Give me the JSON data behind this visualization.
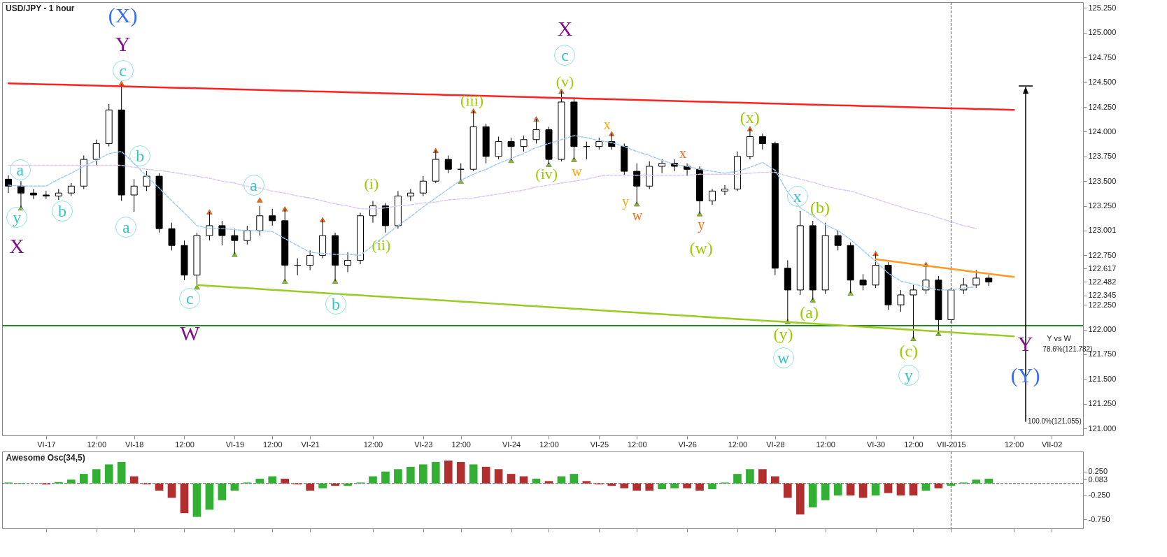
{
  "chart_data": [
    {
      "type": "candlestick",
      "title": "USD/JPY - 1 hour",
      "categories": [
        null,
        null,
        null,
        "VI-17",
        null,
        null,
        null,
        "12:00",
        null,
        null,
        "VI-18",
        null,
        null,
        null,
        "12:00",
        null,
        null,
        null,
        "VI-19",
        null,
        null,
        "12:00",
        null,
        null,
        "VI-21",
        null,
        null,
        null,
        null,
        "12:00",
        null,
        null,
        null,
        "VI-23",
        null,
        null,
        "12:00",
        null,
        null,
        null,
        "VI-24",
        null,
        null,
        "12:00",
        null,
        null,
        null,
        "VI-25",
        null,
        null,
        "12:00",
        null,
        null,
        null,
        "VI-26",
        null,
        null,
        null,
        "12:00",
        null,
        null,
        "VI-28",
        null,
        null,
        null,
        "12:00",
        null,
        null,
        null,
        "VI-30",
        null,
        null,
        "12:00",
        null,
        null,
        "VII-2015",
        null,
        null,
        null,
        null,
        "12:00",
        null,
        null,
        "VII-02",
        null,
        null
      ],
      "ohlc": [
        [
          123.52,
          123.56,
          123.38,
          123.45
        ],
        [
          123.45,
          123.5,
          123.23,
          123.38
        ],
        [
          123.38,
          123.42,
          123.32,
          123.36
        ],
        [
          123.36,
          123.4,
          123.32,
          123.35
        ],
        [
          123.35,
          123.42,
          123.31,
          123.38
        ],
        [
          123.38,
          123.48,
          123.35,
          123.45
        ],
        [
          123.45,
          123.76,
          123.42,
          123.72
        ],
        [
          123.72,
          123.92,
          123.66,
          123.88
        ],
        [
          123.88,
          124.28,
          123.85,
          124.22
        ],
        [
          124.22,
          124.48,
          123.3,
          123.36
        ],
        [
          123.36,
          123.52,
          123.19,
          123.45
        ],
        [
          123.45,
          123.6,
          123.4,
          123.55
        ],
        [
          123.55,
          123.58,
          122.98,
          123.02
        ],
        [
          123.02,
          123.08,
          122.8,
          122.85
        ],
        [
          122.85,
          122.9,
          122.5,
          122.55
        ],
        [
          122.55,
          122.98,
          122.45,
          122.95
        ],
        [
          122.95,
          123.19,
          122.9,
          123.05
        ],
        [
          123.05,
          123.1,
          122.85,
          122.95
        ],
        [
          122.95,
          123.02,
          122.76,
          122.9
        ],
        [
          122.9,
          123.05,
          122.86,
          123.0
        ],
        [
          123.0,
          123.25,
          122.95,
          123.15
        ],
        [
          123.15,
          123.22,
          123.05,
          123.1
        ],
        [
          123.1,
          123.22,
          122.49,
          122.65
        ],
        [
          122.65,
          122.72,
          122.55,
          122.65
        ],
        [
          122.65,
          122.8,
          122.6,
          122.75
        ],
        [
          122.75,
          123.11,
          122.72,
          122.95
        ],
        [
          122.95,
          122.98,
          122.49,
          122.65
        ],
        [
          122.65,
          122.78,
          122.58,
          122.7
        ],
        [
          122.7,
          123.18,
          122.66,
          123.15
        ],
        [
          123.15,
          123.3,
          123.08,
          123.25
        ],
        [
          123.25,
          123.28,
          122.98,
          123.05
        ],
        [
          123.05,
          123.4,
          123.02,
          123.35
        ],
        [
          123.35,
          123.42,
          123.3,
          123.38
        ],
        [
          123.38,
          123.55,
          123.35,
          123.5
        ],
        [
          123.5,
          123.81,
          123.48,
          123.72
        ],
        [
          123.72,
          123.76,
          123.58,
          123.62
        ],
        [
          123.62,
          123.68,
          123.5,
          123.62
        ],
        [
          123.62,
          124.21,
          123.6,
          124.05
        ],
        [
          124.05,
          124.08,
          123.68,
          123.75
        ],
        [
          123.75,
          123.95,
          123.72,
          123.9
        ],
        [
          123.9,
          123.94,
          123.71,
          123.85
        ],
        [
          123.85,
          123.96,
          123.8,
          123.92
        ],
        [
          123.92,
          124.13,
          123.88,
          124.02
        ],
        [
          124.02,
          124.05,
          123.67,
          123.72
        ],
        [
          123.72,
          124.41,
          123.7,
          124.3
        ],
        [
          124.3,
          124.34,
          123.72,
          123.85
        ],
        [
          123.85,
          123.9,
          123.72,
          123.85
        ],
        [
          123.85,
          123.94,
          123.82,
          123.9
        ],
        [
          123.9,
          123.98,
          123.82,
          123.85
        ],
        [
          123.85,
          123.88,
          123.56,
          123.6
        ],
        [
          123.6,
          123.68,
          123.27,
          123.45
        ],
        [
          123.45,
          123.7,
          123.42,
          123.65
        ],
        [
          123.65,
          123.72,
          123.58,
          123.68
        ],
        [
          123.68,
          123.72,
          123.6,
          123.65
        ],
        [
          123.65,
          123.68,
          123.55,
          123.62
        ],
        [
          123.62,
          123.65,
          123.17,
          123.3
        ],
        [
          123.3,
          123.42,
          123.26,
          123.4
        ],
        [
          123.4,
          123.46,
          123.36,
          123.42
        ],
        [
          123.42,
          123.8,
          123.4,
          123.75
        ],
        [
          123.75,
          124.03,
          123.72,
          123.95
        ],
        [
          123.95,
          123.98,
          123.82,
          123.88
        ],
        [
          123.88,
          123.9,
          122.55,
          122.62
        ],
        [
          122.62,
          122.7,
          122.08,
          122.4
        ],
        [
          122.4,
          123.2,
          122.35,
          123.05
        ],
        [
          123.05,
          123.1,
          122.3,
          122.4
        ],
        [
          122.4,
          123.08,
          122.36,
          122.95
        ],
        [
          122.95,
          123.0,
          122.8,
          122.85
        ],
        [
          122.85,
          122.88,
          122.37,
          122.5
        ],
        [
          122.5,
          122.56,
          122.4,
          122.45
        ],
        [
          122.45,
          122.77,
          122.42,
          122.65
        ],
        [
          122.65,
          122.68,
          122.2,
          122.25
        ],
        [
          122.25,
          122.4,
          122.18,
          122.35
        ],
        [
          122.35,
          122.45,
          121.91,
          122.4
        ],
        [
          122.4,
          122.66,
          122.36,
          122.5
        ],
        [
          122.5,
          122.54,
          121.96,
          122.1
        ],
        [
          122.1,
          122.42,
          122.06,
          122.4
        ],
        [
          122.4,
          122.52,
          122.36,
          122.45
        ],
        [
          122.45,
          122.6,
          122.42,
          122.52
        ],
        [
          122.52,
          122.55,
          122.44,
          122.48
        ],
        null,
        null,
        null,
        null,
        null,
        null,
        null
      ],
      "series": [
        {
          "type": "line",
          "color": "#9ec9f5",
          "line_style": "dashed",
          "values": [
            123.46,
            123.45,
            123.45,
            123.45,
            123.52,
            123.58,
            123.65,
            123.71,
            123.78,
            123.8,
            123.68,
            123.55,
            123.43,
            123.3,
            123.18,
            123.05,
            123.02,
            123.02,
            123.01,
            123.0,
            123.0,
            122.99,
            122.92,
            122.85,
            122.78,
            122.77,
            122.76,
            122.76,
            122.75,
            122.85,
            122.95,
            123.05,
            123.14,
            123.24,
            123.33,
            123.42,
            123.51,
            123.57,
            123.62,
            123.68,
            123.73,
            123.78,
            123.84,
            123.88,
            123.92,
            123.96,
            123.94,
            123.91,
            123.89,
            123.85,
            123.8,
            123.76,
            123.71,
            123.67,
            123.65,
            123.62,
            123.6,
            123.58,
            123.6,
            123.64,
            123.69,
            123.61,
            123.39,
            123.23,
            123.15,
            123.06,
            123.0,
            122.91,
            122.8,
            122.69,
            122.57,
            122.49,
            122.46,
            122.43,
            122.4,
            122.4,
            122.42,
            122.43,
            null,
            null,
            null,
            null,
            null,
            null,
            null,
            null
          ]
        },
        {
          "type": "line",
          "color": "#dcc6f4",
          "line_style": "dashed",
          "values": [
            123.66,
            123.66,
            123.66,
            123.66,
            123.66,
            123.66,
            123.66,
            123.66,
            123.66,
            123.66,
            123.64,
            123.62,
            123.61,
            123.59,
            123.57,
            123.55,
            123.53,
            123.5,
            123.48,
            123.45,
            123.43,
            123.4,
            123.38,
            123.35,
            123.33,
            123.3,
            123.27,
            123.25,
            123.22,
            123.22,
            123.23,
            123.25,
            123.26,
            123.28,
            123.29,
            123.31,
            123.32,
            123.33,
            123.35,
            123.37,
            123.39,
            123.41,
            123.44,
            123.46,
            123.48,
            123.5,
            123.52,
            123.55,
            123.56,
            123.56,
            123.56,
            123.56,
            123.56,
            123.56,
            123.56,
            123.57,
            123.57,
            123.57,
            123.57,
            123.58,
            123.59,
            123.59,
            123.55,
            123.52,
            123.49,
            123.45,
            123.42,
            123.4,
            123.36,
            123.32,
            123.28,
            123.24,
            123.2,
            123.17,
            123.13,
            123.09,
            123.05,
            123.02,
            null,
            null,
            null,
            null,
            null,
            null,
            null,
            null
          ]
        },
        {
          "type": "line",
          "color": "#ff2020",
          "values": [
            124.489,
            124.486,
            124.482,
            124.479,
            124.476,
            124.472,
            124.469,
            124.465,
            124.462,
            124.459,
            124.455,
            124.452,
            124.449,
            124.445,
            124.442,
            124.439,
            124.435,
            124.432,
            124.428,
            124.425,
            124.422,
            124.418,
            124.415,
            124.412,
            124.408,
            124.405,
            124.402,
            124.398,
            124.395,
            124.391,
            124.388,
            124.385,
            124.381,
            124.378,
            124.375,
            124.371,
            124.368,
            124.365,
            124.361,
            124.358,
            124.355,
            124.351,
            124.348,
            124.344,
            124.341,
            124.338,
            124.334,
            124.331,
            124.328,
            124.324,
            124.321,
            124.318,
            124.314,
            124.311,
            124.307,
            124.304,
            124.301,
            124.297,
            124.294,
            124.291,
            124.287,
            124.284,
            124.281,
            124.277,
            124.274,
            124.27,
            124.267,
            124.264,
            124.26,
            124.257,
            124.254,
            124.25,
            124.247,
            124.244,
            124.24,
            124.237,
            124.234,
            124.23,
            124.227,
            124.224,
            124.22,
            null,
            null,
            null,
            null,
            null
          ]
        },
        {
          "type": "line",
          "color": "#99cc22",
          "values": [
            null,
            null,
            null,
            null,
            null,
            null,
            null,
            null,
            null,
            null,
            null,
            null,
            null,
            null,
            null,
            122.45,
            122.442,
            122.434,
            122.426,
            122.418,
            122.41,
            122.402,
            122.394,
            122.386,
            122.378,
            122.37,
            122.362,
            122.354,
            122.346,
            122.338,
            122.33,
            122.322,
            122.315,
            122.307,
            122.299,
            122.291,
            122.283,
            122.275,
            122.267,
            122.259,
            122.251,
            122.243,
            122.235,
            122.227,
            122.219,
            122.211,
            122.203,
            122.195,
            122.187,
            122.179,
            122.171,
            122.163,
            122.155,
            122.147,
            122.139,
            122.131,
            122.123,
            122.115,
            122.107,
            122.099,
            122.091,
            122.084,
            122.076,
            122.068,
            122.06,
            122.052,
            122.044,
            122.036,
            122.028,
            122.02,
            122.012,
            122.004,
            121.996,
            121.988,
            121.98,
            121.972,
            121.964,
            121.956,
            121.948,
            121.94,
            121.932,
            null,
            null,
            null,
            null,
            null
          ]
        },
        {
          "type": "line",
          "color": "#ff9922",
          "values": [
            null,
            null,
            null,
            null,
            null,
            null,
            null,
            null,
            null,
            null,
            null,
            null,
            null,
            null,
            null,
            null,
            null,
            null,
            null,
            null,
            null,
            null,
            null,
            null,
            null,
            null,
            null,
            null,
            null,
            null,
            null,
            null,
            null,
            null,
            null,
            null,
            null,
            null,
            null,
            null,
            null,
            null,
            null,
            null,
            null,
            null,
            null,
            null,
            null,
            null,
            null,
            null,
            null,
            null,
            null,
            null,
            null,
            null,
            null,
            null,
            null,
            null,
            null,
            null,
            null,
            null,
            null,
            null,
            null,
            122.71,
            122.694,
            122.678,
            122.661,
            122.645,
            122.629,
            122.613,
            122.597,
            122.58,
            122.564,
            122.548,
            122.532,
            null,
            null,
            null,
            null,
            null
          ]
        },
        {
          "type": "scatter",
          "color": "#88bb22",
          "marker": "triangle",
          "values": [
            null,
            123.23,
            null,
            null,
            null,
            null,
            null,
            null,
            null,
            null,
            null,
            null,
            null,
            null,
            null,
            122.43,
            null,
            null,
            122.76,
            null,
            null,
            null,
            122.49,
            null,
            null,
            null,
            122.49,
            null,
            null,
            null,
            null,
            null,
            null,
            null,
            null,
            null,
            123.5,
            null,
            null,
            null,
            123.71,
            null,
            null,
            123.67,
            null,
            123.72,
            null,
            null,
            null,
            null,
            123.27,
            null,
            null,
            null,
            null,
            123.17,
            null,
            null,
            null,
            null,
            null,
            null,
            122.08,
            null,
            122.3,
            null,
            null,
            122.37,
            null,
            null,
            null,
            null,
            121.91,
            null,
            121.96,
            null,
            null,
            null,
            null,
            null,
            null,
            null,
            null,
            null,
            null,
            null
          ]
        },
        {
          "type": "scatter",
          "color": "#ff6600",
          "marker": "triangle",
          "values": [
            null,
            null,
            null,
            null,
            null,
            null,
            null,
            null,
            null,
            124.49,
            null,
            null,
            null,
            null,
            null,
            null,
            123.19,
            null,
            null,
            null,
            123.31,
            null,
            123.22,
            null,
            null,
            123.11,
            null,
            null,
            null,
            null,
            null,
            null,
            null,
            null,
            123.81,
            null,
            null,
            124.21,
            null,
            null,
            null,
            null,
            124.13,
            null,
            124.41,
            null,
            null,
            null,
            123.98,
            null,
            null,
            null,
            null,
            null,
            null,
            null,
            null,
            null,
            null,
            124.03,
            null,
            null,
            null,
            null,
            null,
            null,
            null,
            null,
            null,
            122.77,
            null,
            null,
            null,
            122.66,
            null,
            null,
            null,
            null,
            null,
            null,
            null,
            null,
            null,
            null,
            null,
            null
          ]
        }
      ],
      "ref_lines": [
        {
          "axis": "y",
          "value": 122.04,
          "color": "#228822"
        },
        {
          "axis": "x",
          "value": "VII-2015",
          "color": "#555555",
          "line_style": "dashed"
        }
      ],
      "annotations": [
        "(X)",
        "Y",
        "c",
        "a",
        "y",
        "X",
        "b",
        "b",
        "a",
        "c",
        "W",
        "a",
        "b",
        "(i)",
        "(ii)",
        "(iii)",
        "(iv)",
        "X",
        "c",
        "(v)",
        "x",
        "w",
        "x",
        "y",
        "w",
        "y",
        "(w)",
        "(x)",
        "x",
        "(b)",
        "(a)",
        "(y)",
        "w",
        "(c)",
        "y",
        "Y",
        "(Y)",
        "Y vs W",
        "78.6%(121.782)",
        "100.0%(121.055)"
      ],
      "ylim": [
        120.93,
        125.31
      ],
      "yticks": [
        {
          "value": 125.25,
          "label": "125.250"
        },
        {
          "value": 125,
          "label": "125.000"
        },
        {
          "value": 124.75,
          "label": "124.750"
        },
        {
          "value": 124.5,
          "label": "124.500"
        },
        {
          "value": 124.25,
          "label": "124.250"
        },
        {
          "value": 124,
          "label": "124.000"
        },
        {
          "value": 123.75,
          "label": "123.750"
        },
        {
          "value": 123.5,
          "label": "123.500"
        },
        {
          "value": 123.25,
          "label": "123.250"
        },
        123.001,
        {
          "value": 122.75,
          "label": "122.750"
        },
        122.617,
        122.482,
        122.345,
        {
          "value": 122.25,
          "label": "122.250"
        },
        {
          "value": 122,
          "label": "122.000"
        },
        {
          "value": 121.75,
          "label": "121.750"
        },
        {
          "value": 121.5,
          "label": "121.500"
        },
        {
          "value": 121.25,
          "label": "121.250"
        },
        {
          "value": 121,
          "label": "121.000"
        }
      ]
    },
    {
      "type": "bar",
      "title": "Awesome Osc(34,5)",
      "categories": [
        null,
        null,
        null,
        "VI-17",
        null,
        null,
        null,
        "12:00",
        null,
        null,
        "VI-18",
        null,
        null,
        null,
        "12:00",
        null,
        null,
        null,
        "VI-19",
        null,
        null,
        "12:00",
        null,
        null,
        "VI-21",
        null,
        null,
        null,
        null,
        "12:00",
        null,
        null,
        null,
        "VI-23",
        null,
        null,
        "12:00",
        null,
        null,
        null,
        "VI-24",
        null,
        null,
        "12:00",
        null,
        null,
        null,
        "VI-25",
        null,
        null,
        "12:00",
        null,
        null,
        null,
        "VI-26",
        null,
        null,
        null,
        "12:00",
        null,
        null,
        "VI-28",
        null,
        null,
        null,
        "12:00",
        null,
        null,
        null,
        "VI-30",
        null,
        null,
        "12:00",
        null,
        null,
        "VII-2015",
        null,
        null,
        null,
        null,
        "12:00",
        null,
        null,
        "VII-02",
        null,
        null
      ],
      "values": [
        0.02,
        0.01,
        null,
        -0.02,
        0.03,
        0.08,
        0.2,
        0.3,
        0.4,
        0.45,
        0.15,
        -0.02,
        -0.15,
        -0.3,
        -0.62,
        -0.7,
        -0.55,
        -0.35,
        -0.15,
        0.02,
        0.1,
        0.15,
        0.1,
        -0.02,
        -0.15,
        -0.1,
        -0.05,
        -0.05,
        0.02,
        0.15,
        0.25,
        0.3,
        0.35,
        0.4,
        0.45,
        0.48,
        0.45,
        0.4,
        0.35,
        0.3,
        0.2,
        0.15,
        0.1,
        0.05,
        0.15,
        0.2,
        0.05,
        -0.02,
        -0.05,
        -0.1,
        -0.15,
        -0.15,
        -0.12,
        -0.1,
        -0.1,
        -0.15,
        -0.12,
        0.02,
        0.2,
        0.3,
        0.3,
        0.15,
        -0.3,
        -0.65,
        -0.5,
        -0.35,
        -0.25,
        -0.25,
        -0.3,
        -0.25,
        -0.2,
        -0.25,
        -0.25,
        -0.15,
        -0.1,
        -0.05,
        0.02,
        0.08,
        0.1,
        null,
        null,
        null,
        null,
        null,
        null,
        null
      ],
      "colors": [
        "#33b033",
        "#33b033",
        null,
        "#b22f2f",
        "#33b033",
        "#33b033",
        "#33b033",
        "#33b033",
        "#33b033",
        "#33b033",
        "#b22f2f",
        "#b22f2f",
        "#b22f2f",
        "#b22f2f",
        "#b22f2f",
        "#33b033",
        "#33b033",
        "#33b033",
        "#33b033",
        "#33b033",
        "#33b033",
        "#33b033",
        "#b22f2f",
        "#b22f2f",
        "#b22f2f",
        "#33b033",
        "#b22f2f",
        "#33b033",
        "#33b033",
        "#33b033",
        "#33b033",
        "#33b033",
        "#33b033",
        "#33b033",
        "#33b033",
        "#b22f2f",
        "#b22f2f",
        "#33b033",
        "#b22f2f",
        "#b22f2f",
        "#b22f2f",
        "#b22f2f",
        "#33b033",
        "#b22f2f",
        "#33b033",
        "#33b033",
        "#b22f2f",
        "#b22f2f",
        "#b22f2f",
        "#b22f2f",
        "#b22f2f",
        "#b22f2f",
        "#33b033",
        "#33b033",
        "#b22f2f",
        "#b22f2f",
        "#33b033",
        "#33b033",
        "#33b033",
        "#33b033",
        "#b22f2f",
        "#b22f2f",
        "#b22f2f",
        "#b22f2f",
        "#33b033",
        "#33b033",
        "#33b033",
        "#b22f2f",
        "#b22f2f",
        "#33b033",
        "#b22f2f",
        "#b22f2f",
        "#b22f2f",
        "#33b033",
        "#b22f2f",
        "#33b033",
        "#33b033",
        "#33b033",
        "#33b033",
        null,
        null,
        null,
        null,
        null,
        null,
        null
      ],
      "ref_lines": [
        {
          "axis": "y",
          "value": 0,
          "color": "#555555",
          "line_style": "dashed"
        },
        {
          "axis": "x",
          "value": "VII-2015",
          "color": "#555555",
          "line_style": "dashed"
        }
      ],
      "ylim": [
        -0.94,
        0.67
      ],
      "yticks": [
        {
          "value": 0.25,
          "label": "0.250"
        },
        0.083,
        {
          "value": -0.25,
          "label": "-0.250"
        },
        {
          "value": -0.75,
          "label": "-0.750"
        }
      ],
      "tick_labels": "y"
    }
  ]
}
